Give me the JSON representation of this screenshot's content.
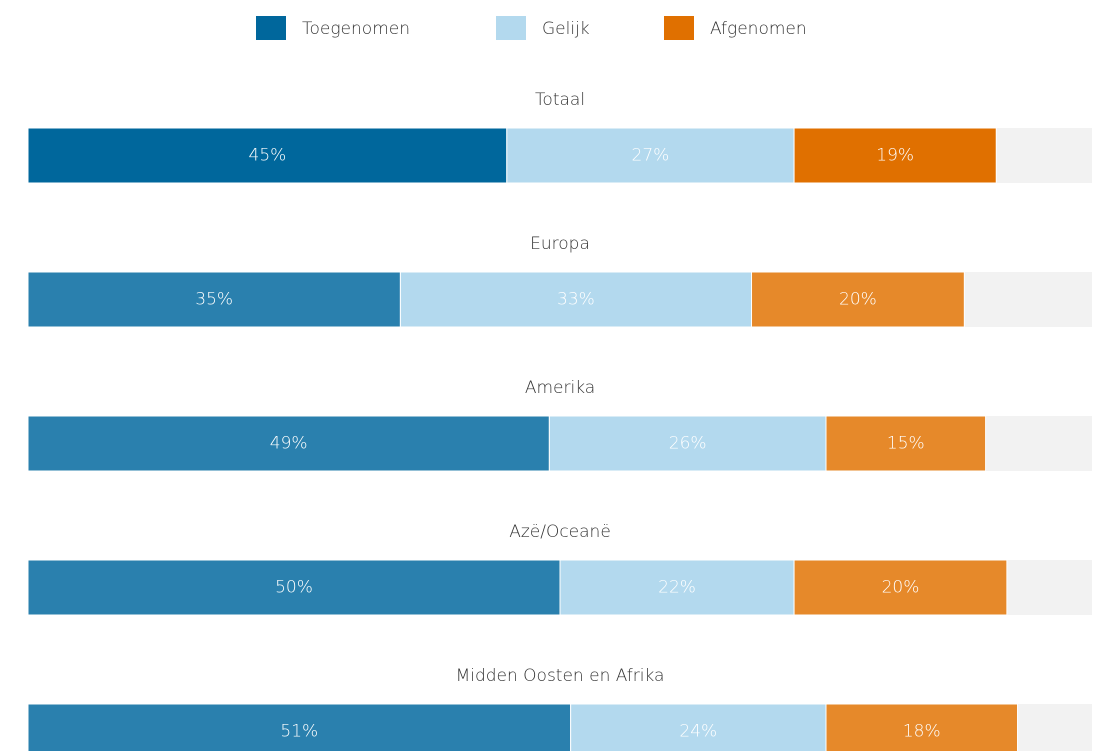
{
  "chart_data": {
    "type": "bar",
    "orientation": "horizontal",
    "stacked": true,
    "categories": [
      "Totaal",
      "Europa",
      "Amerika",
      "Azë/Oceanë",
      "Midden Oosten en Afrika"
    ],
    "xlim": [
      0,
      100
    ],
    "series": [
      {
        "name": "Toegenomen",
        "color": "#00679c",
        "colors": [
          "#00679c",
          "#2a80ae",
          "#2a80ae",
          "#2a80ae",
          "#2a80ae"
        ],
        "values": [
          45,
          35,
          49,
          50,
          51
        ],
        "value_labels": [
          "45%",
          "35%",
          "49%",
          "50%",
          "51%"
        ]
      },
      {
        "name": "Gelijk",
        "color": "#b3d9ee",
        "colors": [
          "#b3d9ee",
          "#b3d9ee",
          "#b3d9ee",
          "#b3d9ee",
          "#b3d9ee"
        ],
        "values": [
          27,
          33,
          26,
          22,
          24
        ],
        "value_labels": [
          "27%",
          "33%",
          "26%",
          "22%",
          "24%"
        ]
      },
      {
        "name": "Afgenomen",
        "color": "#e07000",
        "colors": [
          "#e07000",
          "#e6892a",
          "#e6892a",
          "#e6892a",
          "#e6892a"
        ],
        "values": [
          19,
          20,
          15,
          20,
          18
        ],
        "value_labels": [
          "19%",
          "20%",
          "15%",
          "20%",
          "18%"
        ]
      }
    ]
  }
}
